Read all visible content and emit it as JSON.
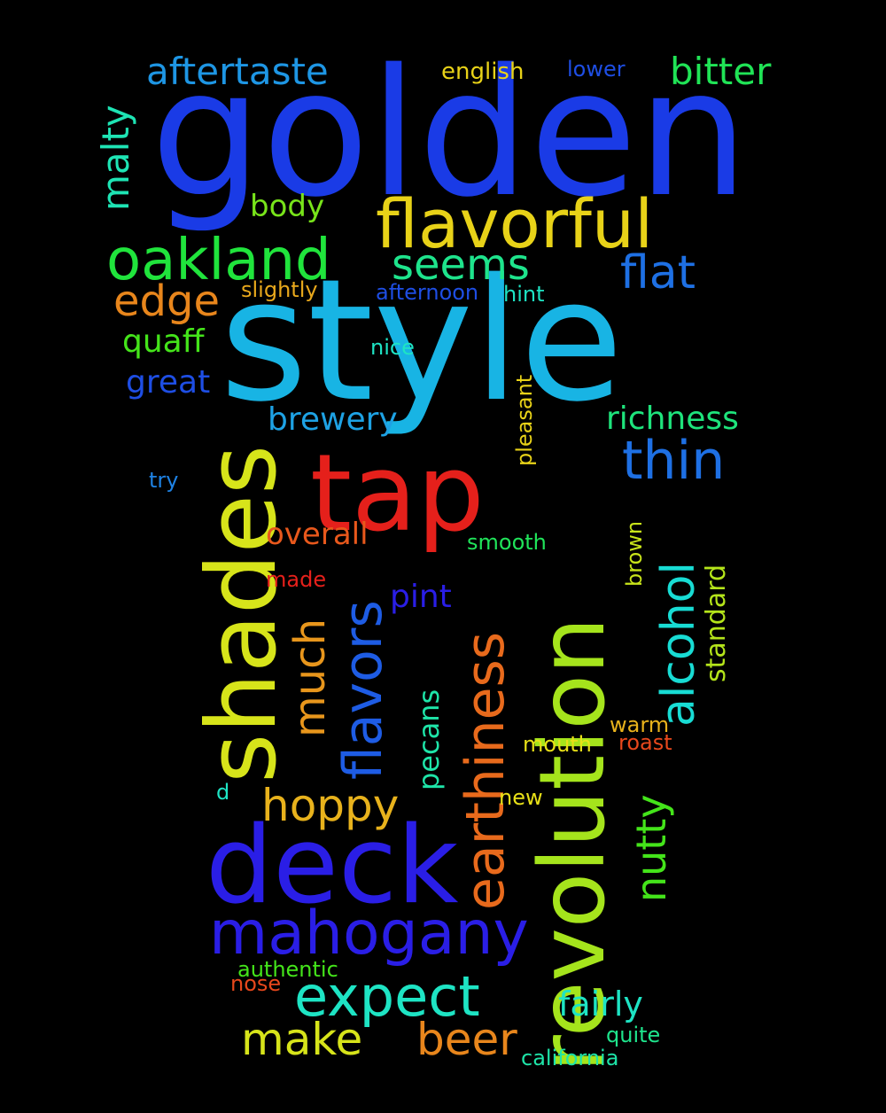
{
  "words": [
    {
      "text": "golden",
      "color": "#1a3be6"
    },
    {
      "text": "style",
      "color": "#18b4e4"
    },
    {
      "text": "tap",
      "color": "#e5201b"
    },
    {
      "text": "shades",
      "color": "#d7e41a"
    },
    {
      "text": "revolution",
      "color": "#a5e41c"
    },
    {
      "text": "deck",
      "color": "#2a1ee6"
    },
    {
      "text": "flavorful",
      "color": "#e8d218"
    },
    {
      "text": "oakland",
      "color": "#20e43c"
    },
    {
      "text": "mahogany",
      "color": "#2a1ee6"
    },
    {
      "text": "earthiness",
      "color": "#e86a1c"
    },
    {
      "text": "expect",
      "color": "#1ee4c4"
    },
    {
      "text": "alcohol",
      "color": "#18dcd4"
    },
    {
      "text": "thin",
      "color": "#1e70e4"
    },
    {
      "text": "flavors",
      "color": "#1e5ce4"
    },
    {
      "text": "make",
      "color": "#d7e41a"
    },
    {
      "text": "beer",
      "color": "#e8861c"
    },
    {
      "text": "hoppy",
      "color": "#e8b21c"
    },
    {
      "text": "much",
      "color": "#e8961c"
    },
    {
      "text": "nutty",
      "color": "#44e41a"
    },
    {
      "text": "seems",
      "color": "#1ee48c"
    },
    {
      "text": "flat",
      "color": "#1e70e4"
    },
    {
      "text": "edge",
      "color": "#e8861c"
    },
    {
      "text": "aftertaste",
      "color": "#1e96e4"
    },
    {
      "text": "bitter",
      "color": "#20e456"
    },
    {
      "text": "malty",
      "color": "#1ee4b4"
    },
    {
      "text": "fairly",
      "color": "#1ee4c4"
    },
    {
      "text": "richness",
      "color": "#1ee47c"
    },
    {
      "text": "brewery",
      "color": "#1ea2e4"
    },
    {
      "text": "quaff",
      "color": "#44e41a"
    },
    {
      "text": "great",
      "color": "#1e4ee4"
    },
    {
      "text": "body",
      "color": "#78e41a"
    },
    {
      "text": "overall",
      "color": "#e8581c"
    },
    {
      "text": "pint",
      "color": "#2a1ee6"
    },
    {
      "text": "pecans",
      "color": "#1ee4a8"
    },
    {
      "text": "standard",
      "color": "#b4e41a"
    },
    {
      "text": "english",
      "color": "#e8d218"
    },
    {
      "text": "lower",
      "color": "#1e4ee4"
    },
    {
      "text": "slightly",
      "color": "#e8a81c"
    },
    {
      "text": "afternoon",
      "color": "#1e4ee4"
    },
    {
      "text": "hint",
      "color": "#1ee4c4"
    },
    {
      "text": "nice",
      "color": "#1ee4c4"
    },
    {
      "text": "pleasant",
      "color": "#e8d218"
    },
    {
      "text": "try",
      "color": "#1e82e4"
    },
    {
      "text": "smooth",
      "color": "#20e45a"
    },
    {
      "text": "made",
      "color": "#e5201b"
    },
    {
      "text": "brown",
      "color": "#c8e41a"
    },
    {
      "text": "warm",
      "color": "#e8b21c"
    },
    {
      "text": "roast",
      "color": "#e8481c"
    },
    {
      "text": "mouth",
      "color": "#e8e018"
    },
    {
      "text": "d",
      "color": "#1ee4c4"
    },
    {
      "text": "new",
      "color": "#e8e018"
    },
    {
      "text": "authentic",
      "color": "#44e41a"
    },
    {
      "text": "nose",
      "color": "#e8481c"
    },
    {
      "text": "quite",
      "color": "#1ee48c"
    },
    {
      "text": "california",
      "color": "#1ee4a8"
    }
  ]
}
